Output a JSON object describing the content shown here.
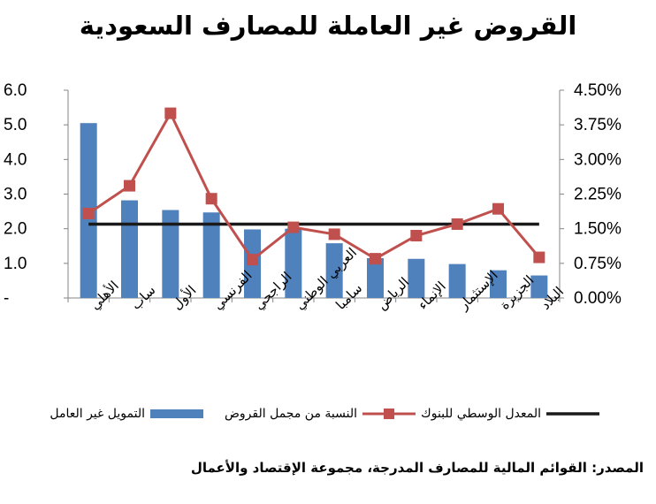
{
  "title": "القروض غير العاملة للمصارف السعودية",
  "source": "المصدر: القوائم المالية للمصارف المدرجة، مجموعة الإقتصاد والأعمال",
  "colors": {
    "bar": "#4F81BD",
    "ratio_line": "#C0504D",
    "median_line": "#1a1a1a",
    "axis": "#868686"
  },
  "chart_data": {
    "type": "bar",
    "title": "القروض غير العاملة للمصارف السعودية",
    "categories": [
      "الأهلي",
      "ساب",
      "الأول",
      "الفرنسي",
      "الراجحي",
      "العربي الوطني",
      "سامبا",
      "الرياض",
      "الإنماء",
      "الإستثمار",
      "الجزيرة",
      "البلاد"
    ],
    "series": [
      {
        "name": "التمويل غير العامل",
        "type": "bar",
        "axis": "left",
        "values": [
          5.05,
          2.82,
          2.54,
          2.47,
          1.98,
          2.0,
          1.58,
          1.15,
          1.13,
          0.98,
          0.8,
          0.65
        ]
      },
      {
        "name": "النسبة من مجمل القروض",
        "type": "line",
        "axis": "right",
        "values": [
          1.83,
          2.43,
          4.0,
          2.15,
          0.83,
          1.53,
          1.38,
          0.85,
          1.35,
          1.6,
          1.93,
          0.88
        ]
      },
      {
        "name": "المعدل الوسطي للبنوك",
        "type": "line",
        "axis": "right",
        "values": [
          1.6,
          1.6,
          1.6,
          1.6,
          1.6,
          1.6,
          1.6,
          1.6,
          1.6,
          1.6,
          1.6,
          1.6
        ]
      }
    ],
    "y_left": {
      "ylim": [
        0,
        6
      ],
      "ticks": [
        "-",
        "1.0",
        "2.0",
        "3.0",
        "4.0",
        "5.0",
        "6.0"
      ]
    },
    "y_right": {
      "ylim": [
        0,
        4.5
      ],
      "unit": "%",
      "ticks": [
        "0.00%",
        "0.75%",
        "1.50%",
        "2.25%",
        "3.00%",
        "3.75%",
        "4.50%"
      ]
    },
    "grid": false,
    "legend_position": "bottom"
  }
}
